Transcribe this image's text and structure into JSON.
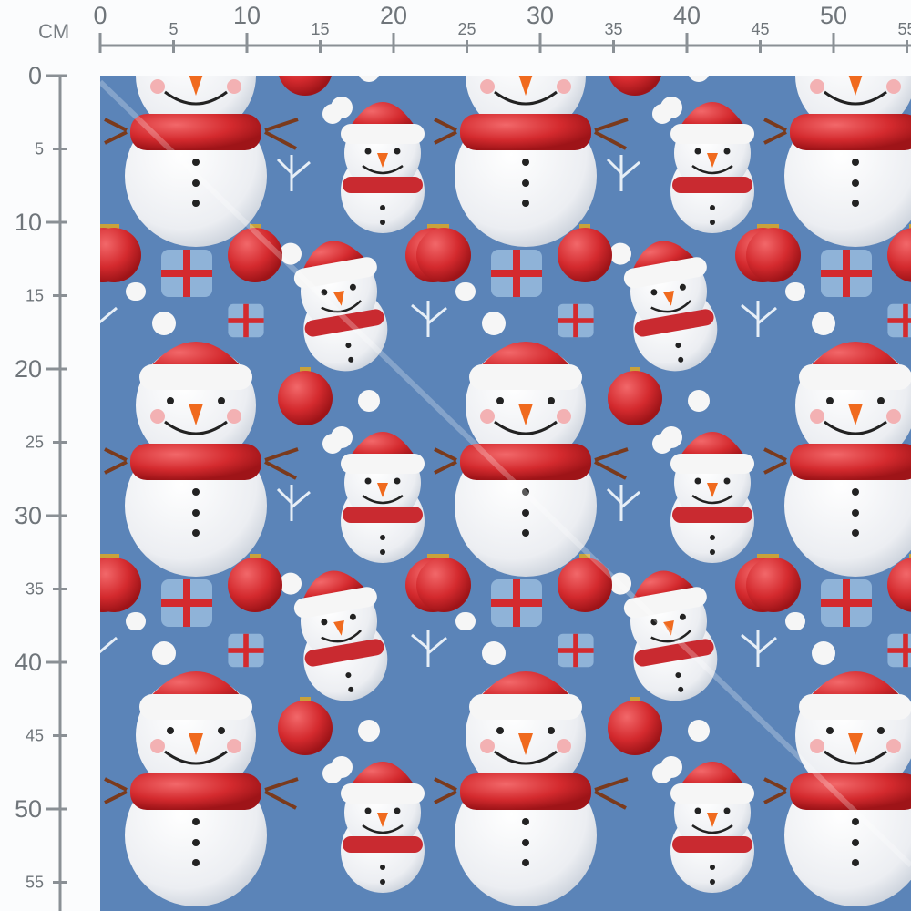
{
  "ruler": {
    "unit": "CM",
    "horizontal_labels": [
      "0",
      "5",
      "10",
      "15",
      "20",
      "25",
      "30",
      "35",
      "40",
      "45",
      "50",
      "55"
    ],
    "vertical_labels": [
      "0",
      "5",
      "10",
      "15",
      "20",
      "25",
      "30",
      "35",
      "40",
      "45",
      "50",
      "55"
    ]
  },
  "fabric": {
    "pattern": "snowmen-christmas",
    "colors": {
      "background": "#5b84b8",
      "snow": "#f4f5f7",
      "red": "#d42a2e",
      "carrot": "#f06a1e",
      "ruler": "#8a9095"
    }
  }
}
